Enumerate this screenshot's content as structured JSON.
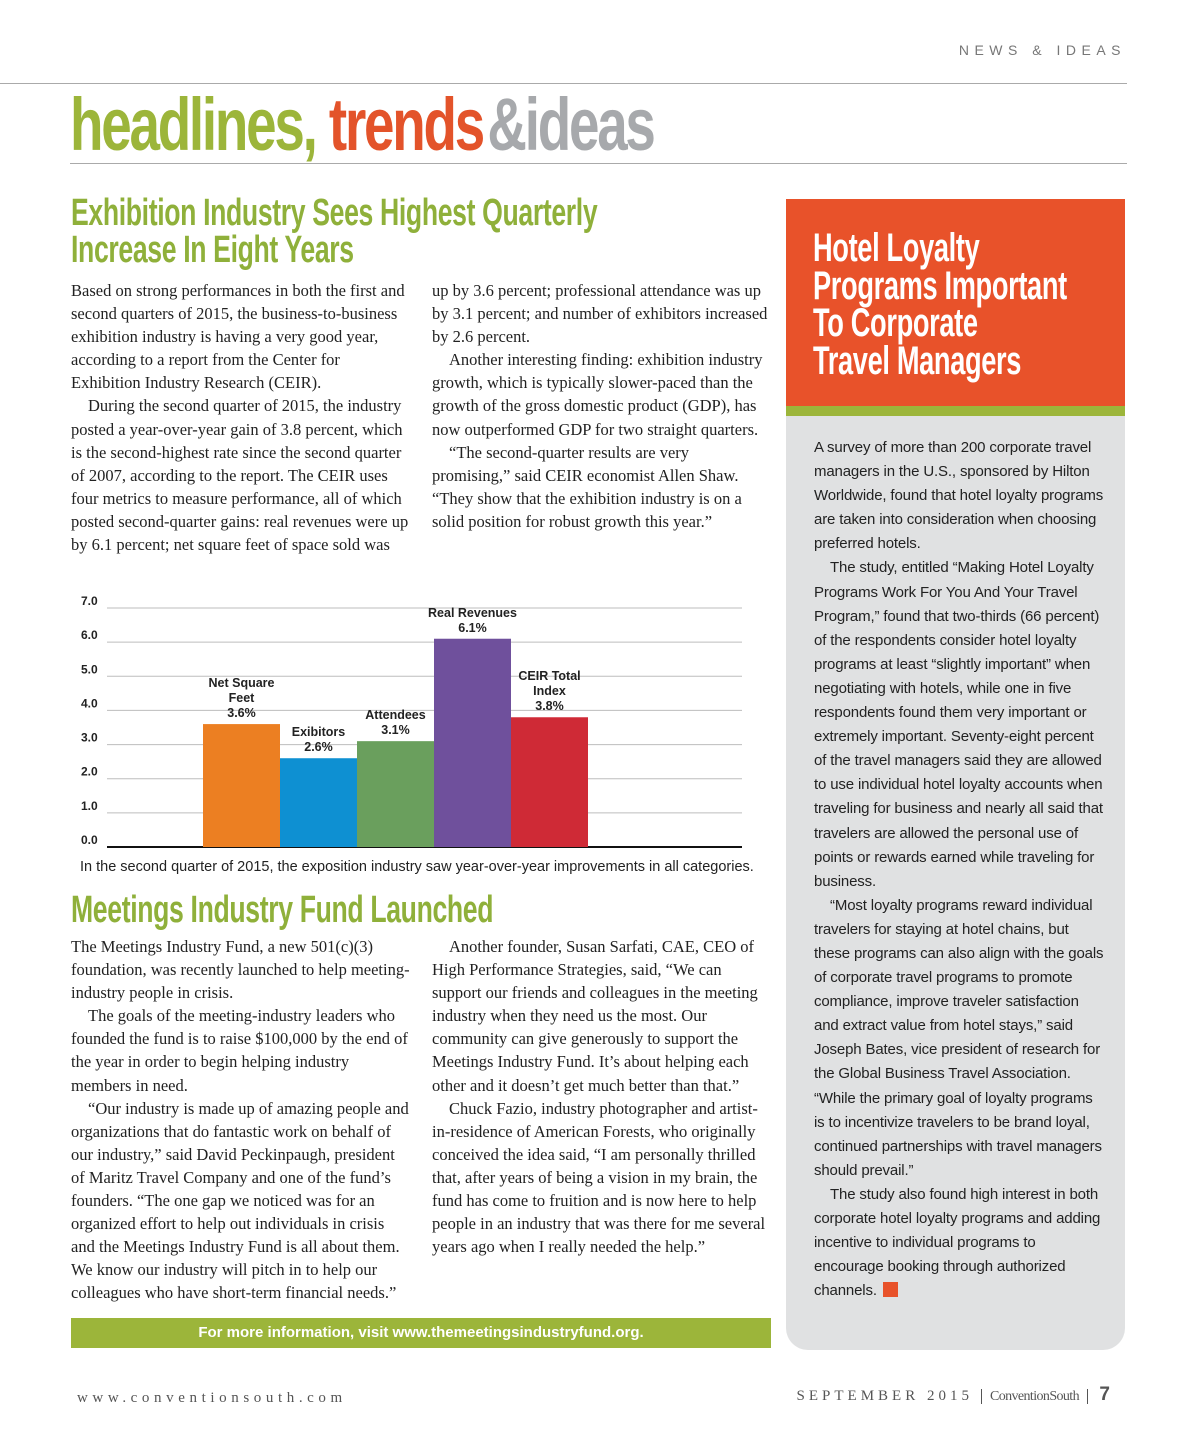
{
  "header": {
    "section": "NEWS & IDEAS",
    "title": [
      "headlines,",
      "trends",
      "&ideas"
    ]
  },
  "article1": {
    "headline": [
      "Exhibition Industry Sees Highest Quarterly",
      "Increase In Eight Years"
    ],
    "paragraphs": [
      "Based on strong performances in both the first and second quarters of 2015, the business-to-business exhibition industry is having a very good year, according to a report from the Center for Exhibition Industry Research (CEIR).",
      "During the second quarter of 2015, the industry posted a year-over-year gain of 3.8 percent, which is the second-highest rate since the second quarter of 2007, according to the report. The CEIR uses four metrics to measure performance, all of which posted second-quarter gains: real revenues were up by 6.1 percent; net square feet of space sold was up by 3.6 percent; professional attendance was up by 3.1 percent; and number of exhibitors increased by 2.6 percent.",
      "Another interesting finding: exhibition industry growth, which is typically slower-paced than the growth of the gross domestic product (GDP), has now outperformed GDP for two straight quarters.",
      "“The second-quarter results are very promising,” said CEIR economist Allen Shaw. “They show that the exhibition industry is on a solid position for robust growth this year.”"
    ]
  },
  "chart_data": {
    "type": "bar",
    "categories": [
      "Net Square Feet",
      "Exibitors",
      "Attendees",
      "Real Revenues",
      "CEIR Total Index"
    ],
    "values": [
      3.6,
      2.6,
      3.1,
      6.1,
      3.8
    ],
    "value_labels": [
      "3.6%",
      "2.6%",
      "3.1%",
      "6.1%",
      "3.8%"
    ],
    "colors": [
      "#ec7f22",
      "#0e90d2",
      "#6a9f5d",
      "#6f509c",
      "#cf2a36"
    ],
    "ylim": [
      0,
      7
    ],
    "yticks": [
      {
        "value": 0,
        "label": "0.0"
      },
      {
        "value": 1,
        "label": "1.0"
      },
      {
        "value": 2,
        "label": "2.0"
      },
      {
        "value": 3,
        "label": "3.0"
      },
      {
        "value": 4,
        "label": "4.0"
      },
      {
        "value": 5,
        "label": "5.0"
      },
      {
        "value": 6,
        "label": "6.0"
      },
      {
        "value": 7,
        "label": "7.0"
      }
    ],
    "grid": true,
    "caption": "In the second quarter of 2015, the exposition industry saw year-over-year improvements in all categories."
  },
  "article2": {
    "headline": "Meetings Industry Fund Launched",
    "paragraphs": [
      "The Meetings Industry Fund, a new 501(c)(3) foundation, was recently launched to help meeting-industry people in crisis.",
      "The goals of the meeting-industry leaders who founded the fund is to raise $100,000 by the end of the year in order to begin helping industry members in need.",
      "“Our industry is made up of amazing people and organizations that do fantastic work on behalf of our industry,” said David Peckinpaugh, president of Maritz Travel Company and one of the fund’s founders. “The one gap we noticed was for an organized effort to help out individuals in crisis and the Meetings Industry Fund is all about them. We know our industry will pitch in to help our colleagues who have short-term financial needs.”",
      "Another founder, Susan Sarfati, CAE, CEO of High Performance Strategies, said, “We can support our friends and colleagues in the meeting industry when they need us the most. Our community can give generously to support the Meetings Industry Fund. It’s about helping each other and it doesn’t get much better than that.”",
      "Chuck Fazio, industry photographer and artist-in-residence of American Forests, who originally conceived the idea said, “I am personally thrilled that, after years of being a vision in my brain, the fund has come to fruition and is now here to help people in an industry that was there for me several years ago when I really needed the help.”"
    ],
    "more_info": "For more information, visit www.themeetingsindustryfund.org."
  },
  "sidebar": {
    "headline": [
      "Hotel Loyalty",
      "Programs Important",
      "To Corporate",
      "Travel Managers"
    ],
    "paragraphs": [
      "A survey of more than 200 corporate travel managers in the U.S., sponsored by Hilton Worldwide, found that hotel loyalty programs are taken into consideration when choosing preferred hotels.",
      "The study, entitled “Making Hotel Loyalty Programs Work For You And Your Travel Program,” found that two-thirds (66 percent) of the respondents consider hotel loyalty programs at least “slightly important” when negotiating with hotels, while one in five respondents found them very important or extremely important. Seventy-eight percent of the travel managers said they are allowed to use individual hotel loyalty accounts when traveling for business and nearly all said that travelers are allowed the personal use of points or rewards earned while traveling for business.",
      "“Most loyalty programs reward individual travelers for staying at hotel chains, but these programs can also align with the goals of corporate travel programs to promote compliance, improve traveler satisfaction and extract value from hotel stays,” said Joseph Bates, vice president of research for the Global Business Travel Association. “While the primary goal of loyalty programs is to incentivize travelers to be brand loyal, continued partnerships with travel managers should prevail.”",
      "The study also found high interest in both corporate hotel loyalty programs and adding incentive to individual programs to encourage booking through authorized channels."
    ]
  },
  "footer": {
    "website": "www.conventionsouth.com",
    "issue": "SEPTEMBER 2015",
    "publication": "ConventionSouth",
    "page": "7"
  }
}
